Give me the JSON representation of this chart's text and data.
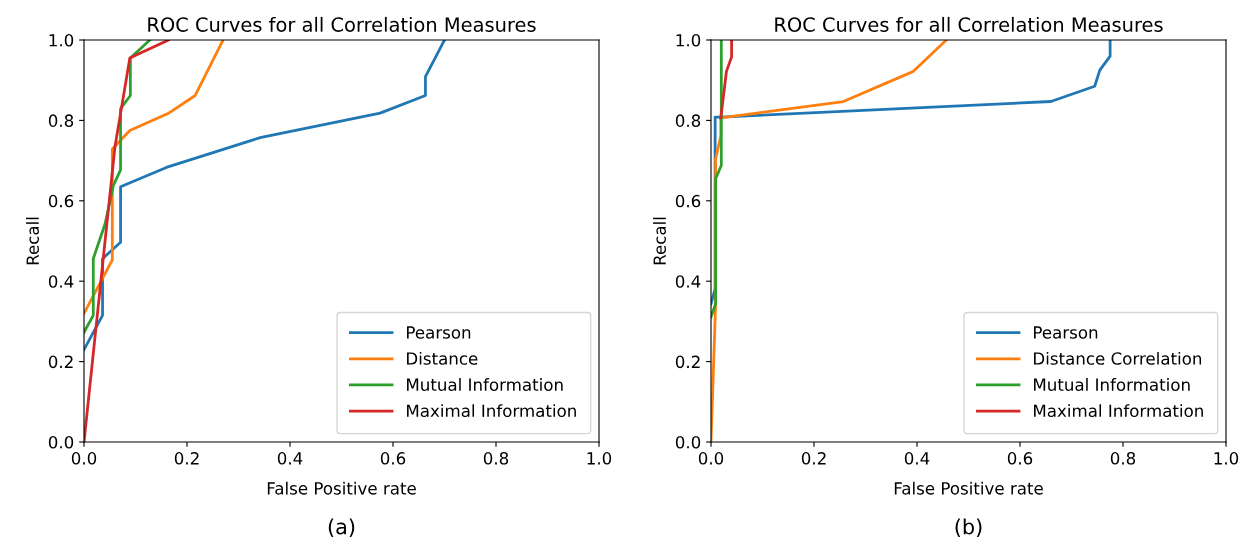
{
  "chart_data": [
    {
      "type": "line",
      "title": "ROC Curves for all Correlation Measures",
      "xlabel": "False Positive rate",
      "ylabel": "Recall",
      "annotations": [
        "(a)"
      ],
      "xlim": [
        0,
        1
      ],
      "ylim": [
        0,
        1
      ],
      "xticks": [
        {
          "value": 0,
          "label": "0.0"
        },
        {
          "value": 0.2,
          "label": "0.2"
        },
        {
          "value": 0.4,
          "label": "0.4"
        },
        {
          "value": 0.6,
          "label": "0.6"
        },
        {
          "value": 0.8,
          "label": "0.8"
        },
        {
          "value": 1,
          "label": "1.0"
        }
      ],
      "yticks": [
        {
          "value": 0,
          "label": "0.0"
        },
        {
          "value": 0.2,
          "label": "0.2"
        },
        {
          "value": 0.4,
          "label": "0.4"
        },
        {
          "value": 0.6,
          "label": "0.6"
        },
        {
          "value": 0.8,
          "label": "0.8"
        },
        {
          "value": 1,
          "label": "1.0"
        }
      ],
      "legend": "bottom right",
      "grid": false,
      "series": [
        {
          "name": "Pearson",
          "color": "#1f77b4",
          "x": [
            0,
            0.036,
            0.036,
            0.071,
            0.071,
            0.16,
            0.342,
            0.575,
            0.663,
            0.663,
            0.7
          ],
          "values": [
            0.23,
            0.315,
            0.456,
            0.497,
            0.635,
            0.683,
            0.757,
            0.818,
            0.862,
            0.909,
            1.0
          ]
        },
        {
          "name": "Distance",
          "color": "#ff7f0e",
          "x": [
            0,
            0.055,
            0.055,
            0.089,
            0.163,
            0.216,
            0.27
          ],
          "values": [
            0.32,
            0.453,
            0.729,
            0.775,
            0.817,
            0.862,
            1.0
          ]
        },
        {
          "name": "Mutual Information",
          "color": "#2ca02c",
          "x": [
            0,
            0.018,
            0.018,
            0.041,
            0.057,
            0.071,
            0.071,
            0.09,
            0.09,
            0.128
          ],
          "values": [
            0.273,
            0.315,
            0.456,
            0.543,
            0.638,
            0.677,
            0.829,
            0.862,
            0.955,
            1.0
          ]
        },
        {
          "name": "Maximal Information",
          "color": "#d62728",
          "x": [
            0,
            0.06,
            0.089,
            0.164
          ],
          "values": [
            0,
            0.733,
            0.955,
            1.0
          ]
        }
      ]
    },
    {
      "type": "line",
      "title": "ROC Curves for all Correlation Measures",
      "xlabel": "False Positive rate",
      "ylabel": "Recall",
      "annotations": [
        "(b)"
      ],
      "xlim": [
        0,
        1
      ],
      "ylim": [
        0,
        1
      ],
      "xticks": [
        {
          "value": 0,
          "label": "0.0"
        },
        {
          "value": 0.2,
          "label": "0.2"
        },
        {
          "value": 0.4,
          "label": "0.4"
        },
        {
          "value": 0.6,
          "label": "0.6"
        },
        {
          "value": 0.8,
          "label": "0.8"
        },
        {
          "value": 1,
          "label": "1.0"
        }
      ],
      "yticks": [
        {
          "value": 0,
          "label": "0.0"
        },
        {
          "value": 0.2,
          "label": "0.2"
        },
        {
          "value": 0.4,
          "label": "0.4"
        },
        {
          "value": 0.6,
          "label": "0.6"
        },
        {
          "value": 0.8,
          "label": "0.8"
        },
        {
          "value": 1,
          "label": "1.0"
        }
      ],
      "legend": "bottom right",
      "grid": false,
      "series": [
        {
          "name": "Pearson",
          "color": "#1f77b4",
          "x": [
            0,
            0.008,
            0.008,
            0.019,
            0.66,
            0.745,
            0.755,
            0.775,
            0.775
          ],
          "values": [
            0.344,
            0.381,
            0.808,
            0.808,
            0.847,
            0.885,
            0.925,
            0.96,
            1.0
          ]
        },
        {
          "name": "Distance Correlation",
          "color": "#ff7f0e",
          "x": [
            0,
            0.009,
            0.009,
            0.019,
            0.019,
            0.257,
            0.393,
            0.457
          ],
          "values": [
            0,
            0.344,
            0.704,
            0.762,
            0.806,
            0.847,
            0.922,
            1.0
          ]
        },
        {
          "name": "Mutual Information",
          "color": "#2ca02c",
          "x": [
            0,
            0.009,
            0.009,
            0.02,
            0.02
          ],
          "values": [
            0.311,
            0.344,
            0.655,
            0.688,
            1.0
          ]
        },
        {
          "name": "Maximal Information",
          "color": "#d62728",
          "x": [
            0.019,
            0.03,
            0.04,
            0.04
          ],
          "values": [
            0.806,
            0.922,
            0.958,
            1.0
          ]
        }
      ]
    }
  ]
}
